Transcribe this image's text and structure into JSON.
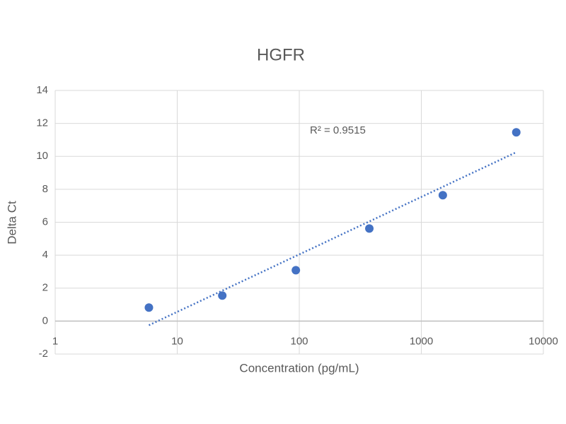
{
  "chart_data": {
    "type": "scatter",
    "title": "HGFR",
    "x_label": "Concentration (pg/mL)",
    "y_label": "Delta Ct",
    "x_scale": "log",
    "grid": true,
    "xlim": [
      1,
      10000
    ],
    "xticks": [
      1,
      10,
      100,
      1000,
      10000
    ],
    "ylim": [
      -2,
      14
    ],
    "yticks": [
      -2,
      0,
      2,
      4,
      6,
      8,
      10,
      12,
      14
    ],
    "series": [
      {
        "name": "HGFR",
        "color": "#4472c4",
        "x": [
          5.86,
          23.4,
          93.75,
          375,
          1500,
          6000
        ],
        "values": [
          0.82,
          1.55,
          3.09,
          5.62,
          7.64,
          11.46
        ]
      }
    ],
    "trendline": {
      "label": "R² = 0.9515",
      "color": "#4472c4",
      "x": [
        5.86,
        6000
      ],
      "values": [
        -0.25,
        10.25
      ]
    }
  }
}
